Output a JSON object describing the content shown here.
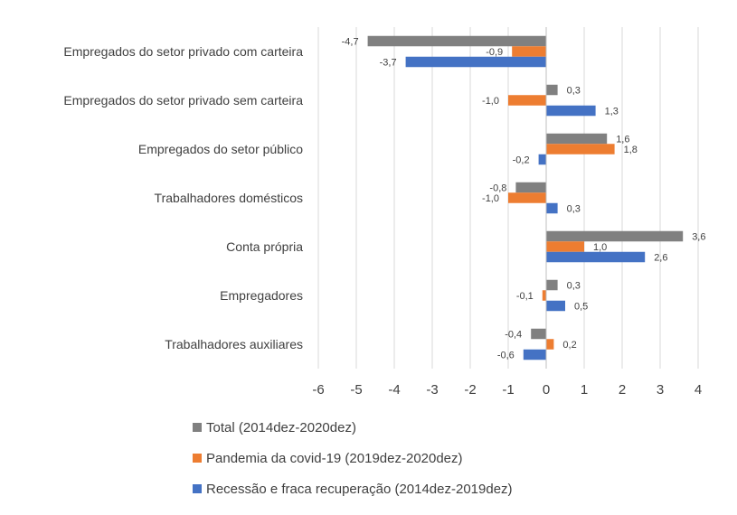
{
  "chart_data": {
    "type": "bar",
    "orientation": "horizontal",
    "categories": [
      "Empregados do setor privado com carteira",
      "Empregados do setor privado sem carteira",
      "Empregados do setor público",
      "Trabalhadores domésticos",
      "Conta própria",
      "Empregadores",
      "Trabalhadores auxiliares"
    ],
    "series": [
      {
        "name": "Total (2014dez-2020dez)",
        "color": "#808080",
        "values": [
          -4.7,
          0.3,
          1.6,
          -0.8,
          3.6,
          0.3,
          -0.4
        ],
        "labels": [
          "-4,7",
          "0,3",
          "1,6",
          "-0,8",
          "3,6",
          "0,3",
          "-0,4"
        ]
      },
      {
        "name": "Pandemia da covid-19 (2019dez-2020dez)",
        "color": "#ED7D31",
        "values": [
          -0.9,
          -1.0,
          1.8,
          -1.0,
          1.0,
          -0.1,
          0.2
        ],
        "labels": [
          "-0,9",
          "-1,0",
          "1,8",
          "-1,0",
          "1,0",
          "-0,1",
          "0,2"
        ]
      },
      {
        "name": "Recessão e fraca recuperação (2014dez-2019dez)",
        "color": "#4472C4",
        "values": [
          -3.7,
          1.3,
          -0.2,
          0.3,
          2.6,
          0.5,
          -0.6
        ],
        "labels": [
          "-3,7",
          "1,3",
          "-0,2",
          "0,3",
          "2,6",
          "0,5",
          "-0,6"
        ]
      }
    ],
    "xlim": [
      -6,
      4
    ],
    "xticks": [
      "-6",
      "-5",
      "-4",
      "-3",
      "-2",
      "-1",
      "0",
      "1",
      "2",
      "3",
      "4"
    ],
    "grid": true,
    "legend_position": "bottom"
  }
}
